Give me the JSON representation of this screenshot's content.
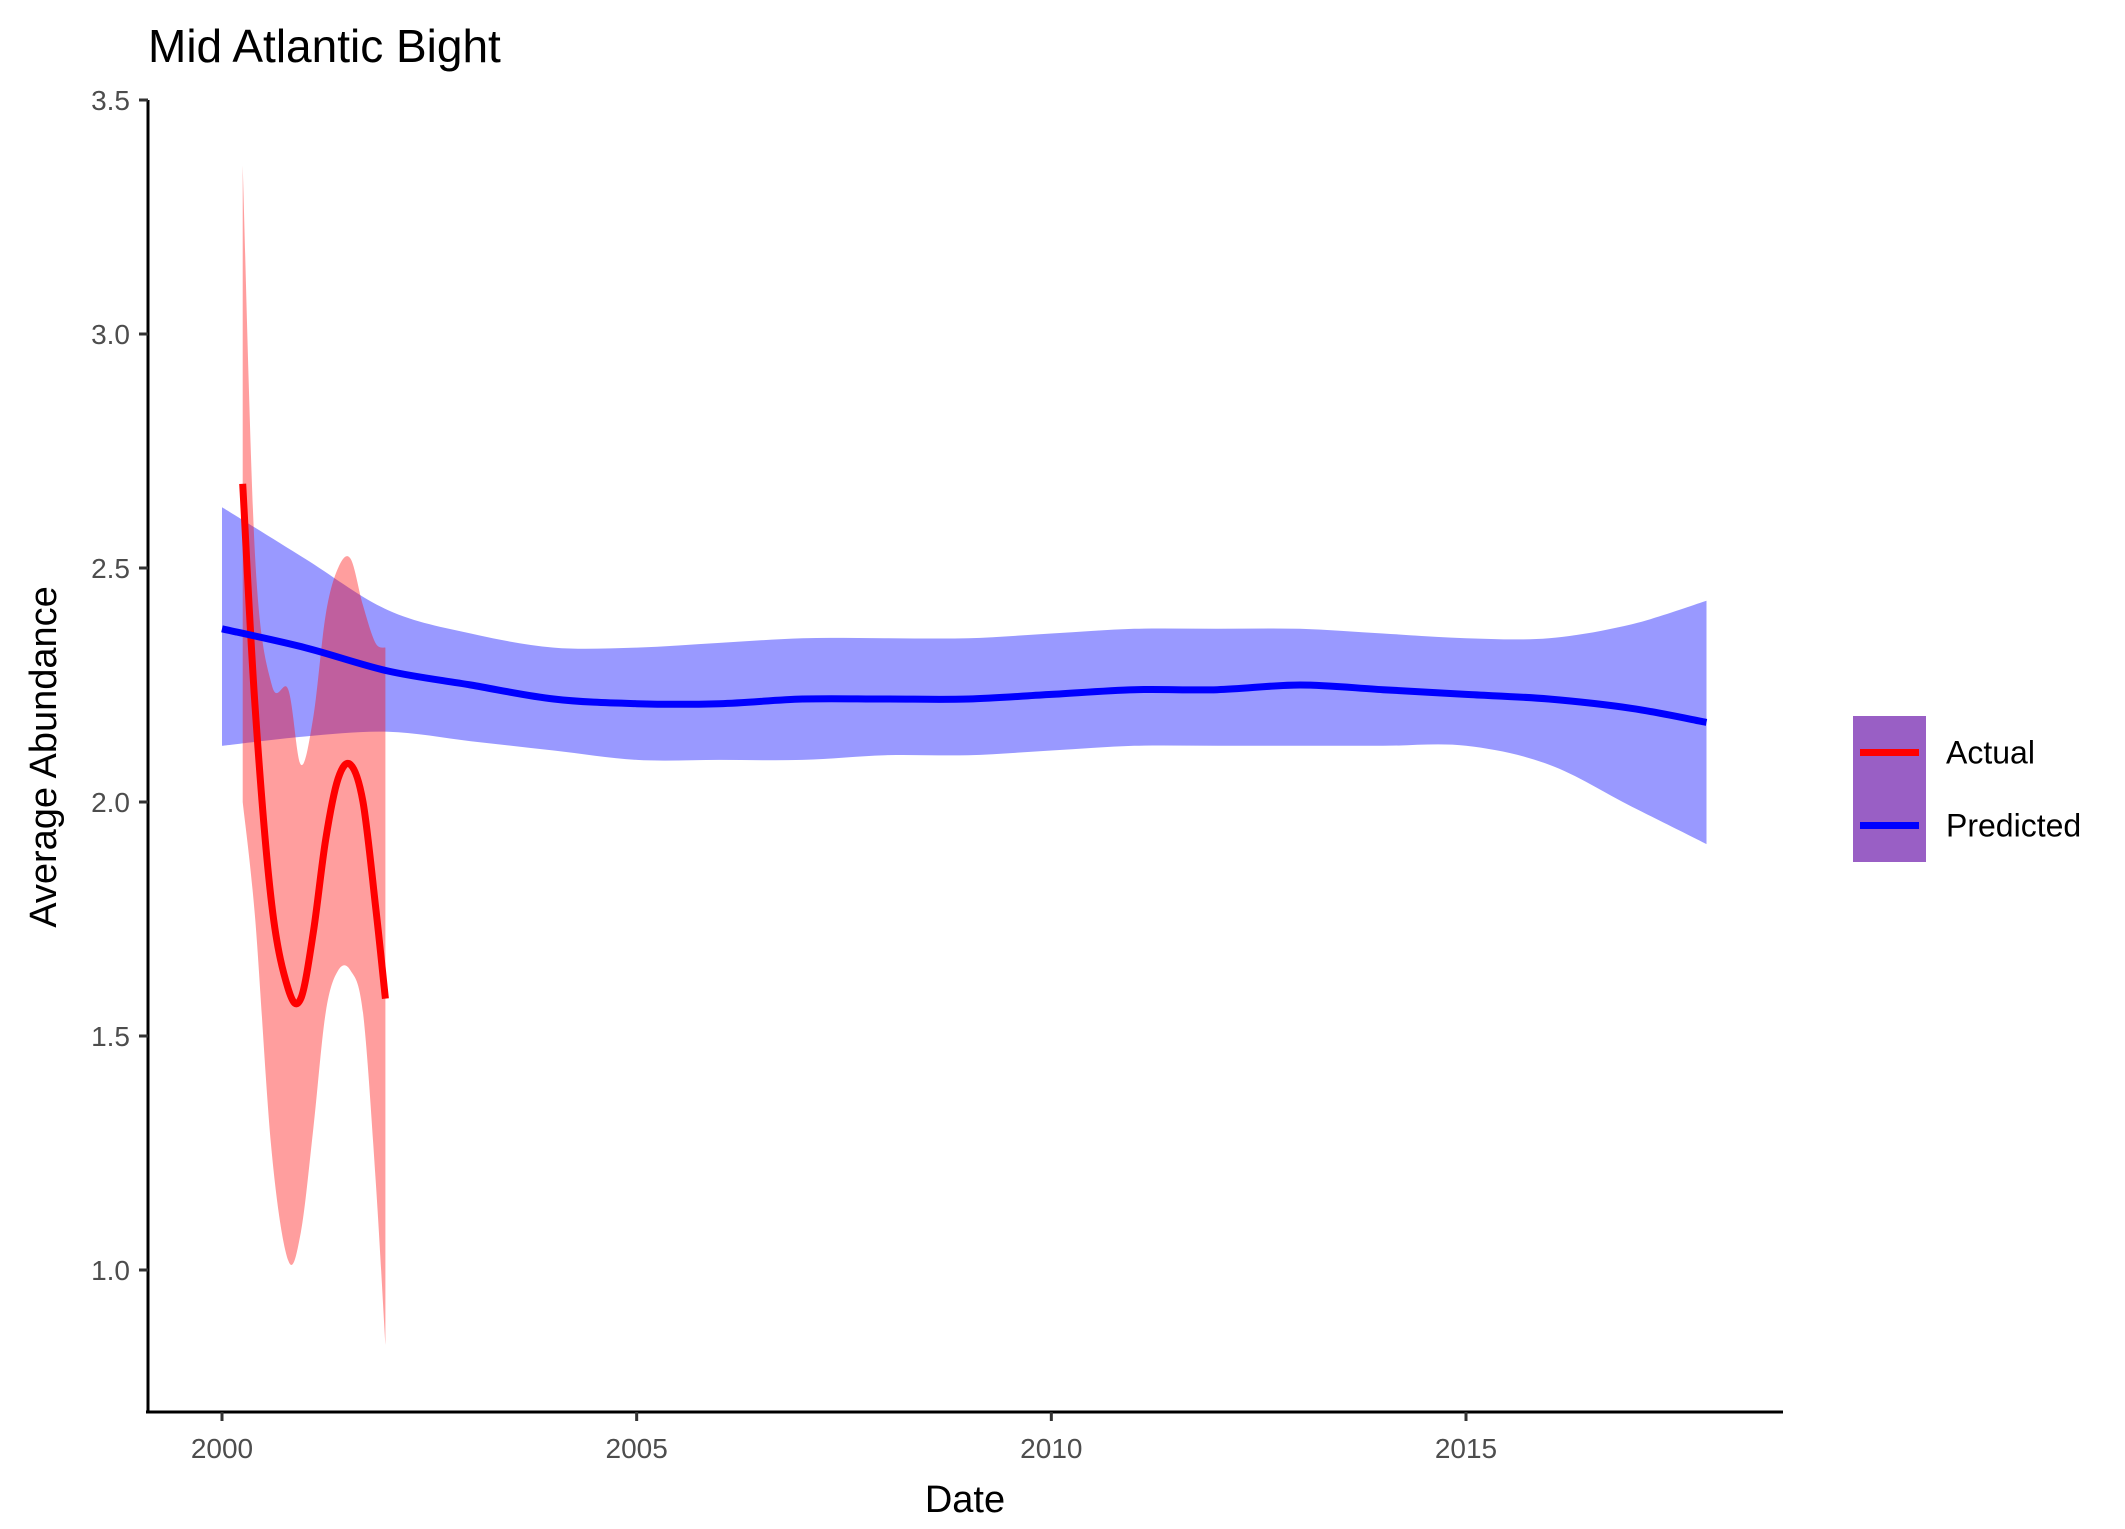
{
  "chart_data": {
    "type": "line",
    "title": "Mid Atlantic Bight",
    "xlabel": "Date",
    "ylabel": "Average Abundance",
    "xlim": [
      1999.9,
      2018.8
    ],
    "ylim": [
      0.7,
      3.5
    ],
    "x_ticks": [
      2000,
      2005,
      2010,
      2015
    ],
    "x_tick_labels": [
      "2000",
      "2005",
      "2010",
      "2015"
    ],
    "y_ticks": [
      1.0,
      1.5,
      2.0,
      2.5,
      3.0,
      3.5
    ],
    "y_tick_labels": [
      "1.0",
      "1.5",
      "2.0",
      "2.5",
      "3.0",
      "3.5"
    ],
    "grid": false,
    "legend": {
      "placement": "right",
      "entries": [
        "Actual",
        "Predicted"
      ]
    },
    "series": [
      {
        "name": "Actual",
        "color": "#ff0000",
        "band_color": "#ff0000",
        "band_opacity": 0.38,
        "x": [
          2000.25,
          2000.4,
          2000.6,
          2000.8,
          2000.95,
          2001.1,
          2001.25,
          2001.4,
          2001.55,
          2001.7,
          2001.85,
          2001.97
        ],
        "y": [
          2.68,
          2.2,
          1.78,
          1.6,
          1.58,
          1.72,
          1.92,
          2.05,
          2.08,
          2.0,
          1.78,
          1.58
        ],
        "lower": [
          2.0,
          1.75,
          1.25,
          1.02,
          1.08,
          1.3,
          1.55,
          1.64,
          1.64,
          1.55,
          1.2,
          0.84
        ],
        "upper": [
          3.36,
          2.52,
          2.25,
          2.24,
          2.08,
          2.18,
          2.4,
          2.5,
          2.52,
          2.42,
          2.34,
          2.33
        ]
      },
      {
        "name": "Predicted",
        "color": "#0000ff",
        "band_color": "#0000ff",
        "band_opacity": 0.4,
        "x": [
          2000.0,
          2001.0,
          2002.0,
          2003.0,
          2004.0,
          2005.0,
          2006.0,
          2007.0,
          2008.0,
          2009.0,
          2010.0,
          2011.0,
          2012.0,
          2013.0,
          2014.0,
          2015.0,
          2016.0,
          2017.0,
          2017.9
        ],
        "y": [
          2.37,
          2.33,
          2.28,
          2.25,
          2.22,
          2.21,
          2.21,
          2.22,
          2.22,
          2.22,
          2.23,
          2.24,
          2.24,
          2.25,
          2.24,
          2.23,
          2.22,
          2.2,
          2.17
        ],
        "lower": [
          2.12,
          2.14,
          2.15,
          2.13,
          2.11,
          2.09,
          2.09,
          2.09,
          2.1,
          2.1,
          2.11,
          2.12,
          2.12,
          2.12,
          2.12,
          2.12,
          2.08,
          1.99,
          1.91
        ],
        "upper": [
          2.63,
          2.52,
          2.41,
          2.36,
          2.33,
          2.33,
          2.34,
          2.35,
          2.35,
          2.35,
          2.36,
          2.37,
          2.37,
          2.37,
          2.36,
          2.35,
          2.35,
          2.38,
          2.43
        ]
      }
    ]
  }
}
